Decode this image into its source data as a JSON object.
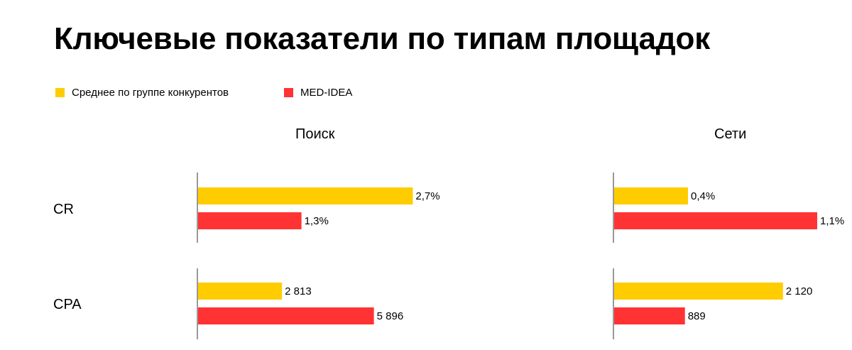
{
  "title": "Ключевые показатели по типам площадок",
  "colors": {
    "competitors": "#FFCC00",
    "med_idea": "#FF3333",
    "axis": "#555555"
  },
  "legend": [
    {
      "label": "Среднее по группе конкурентов",
      "color": "#FFCC00"
    },
    {
      "label": "MED-IDEA",
      "color": "#FF3333"
    }
  ],
  "panels": [
    "Поиск",
    "Сети"
  ],
  "rows": [
    "CR",
    "CPA"
  ],
  "chart_data": {
    "type": "bar",
    "orientation": "horizontal",
    "title": "Ключевые показатели по типам площадок",
    "legend_position": "top-left",
    "grid": false,
    "panels": [
      {
        "panel": "Поиск",
        "metrics": [
          {
            "metric": "CR",
            "xlim": [
              0,
              3.0
            ],
            "series": [
              {
                "name": "Среднее по группе конкурентов",
                "value": 2.7,
                "label": "2,7%"
              },
              {
                "name": "MED-IDEA",
                "value": 1.3,
                "label": "1,3%"
              }
            ]
          },
          {
            "metric": "CPA",
            "xlim": [
              0,
              8000
            ],
            "series": [
              {
                "name": "Среднее по группе конкурентов",
                "value": 2813,
                "label": "2 813"
              },
              {
                "name": "MED-IDEA",
                "value": 5896,
                "label": "5 896"
              }
            ]
          }
        ]
      },
      {
        "panel": "Сети",
        "metrics": [
          {
            "metric": "CR",
            "xlim": [
              0,
              1.1
            ],
            "series": [
              {
                "name": "Среднее по группе конкурентов",
                "value": 0.4,
                "label": "0,4%"
              },
              {
                "name": "MED-IDEA",
                "value": 1.1,
                "label": "1,1%"
              }
            ]
          },
          {
            "metric": "CPA",
            "xlim": [
              0,
              2550
            ],
            "series": [
              {
                "name": "Среднее по группе конкурентов",
                "value": 2120,
                "label": "2 120"
              },
              {
                "name": "MED-IDEA",
                "value": 889,
                "label": "889"
              }
            ]
          }
        ]
      }
    ]
  }
}
